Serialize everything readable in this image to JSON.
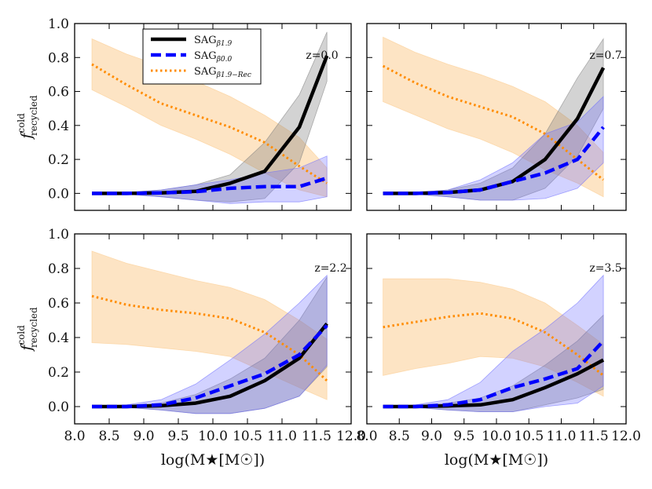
{
  "chart_data": {
    "type": "line",
    "xlabel": "log(M★[M☉])",
    "ylabel": "f^cold_recycled",
    "xlim": [
      8.0,
      12.0
    ],
    "ylim": [
      -0.1,
      1.0
    ],
    "xticks": [
      "8.0",
      "8.5",
      "9.0",
      "9.5",
      "10.0",
      "10.5",
      "11.0",
      "11.5",
      "12.0"
    ],
    "yticks": [
      "0.0",
      "0.2",
      "0.4",
      "0.6",
      "0.8",
      "1.0"
    ],
    "legend": {
      "position": "top-left",
      "entries": [
        {
          "label": "SAG",
          "sub": "β1.9",
          "series": "black"
        },
        {
          "label": "SAG",
          "sub": "β0.0",
          "series": "blue"
        },
        {
          "label": "SAG",
          "sub": "β1.9−Rec",
          "series": "orange"
        }
      ]
    },
    "colors": {
      "black": "#000000",
      "blue": "#0000ff",
      "orange": "#ff8c00",
      "black_band": "#808080",
      "blue_band": "#6b6bff",
      "orange_band": "#fbc98a"
    },
    "x": [
      8.25,
      8.75,
      9.25,
      9.75,
      10.25,
      10.75,
      11.25,
      11.65
    ],
    "panels": [
      {
        "annotation": "z=0.0",
        "series": {
          "black": {
            "values": [
              0.0,
              0.0,
              0.003,
              0.012,
              0.06,
              0.13,
              0.39,
              0.81
            ],
            "lower": [
              0.0,
              -0.005,
              -0.02,
              -0.04,
              -0.05,
              -0.03,
              0.18,
              0.66
            ],
            "upper": [
              0.0,
              0.005,
              0.02,
              0.05,
              0.11,
              0.3,
              0.58,
              0.95
            ]
          },
          "blue": {
            "values": [
              0.0,
              0.0,
              0.003,
              0.01,
              0.03,
              0.04,
              0.04,
              0.09
            ],
            "lower": [
              0.0,
              -0.005,
              -0.02,
              -0.04,
              -0.06,
              -0.05,
              -0.05,
              -0.02
            ],
            "upper": [
              0.0,
              0.005,
              0.02,
              0.05,
              0.08,
              0.12,
              0.15,
              0.22
            ]
          },
          "orange": {
            "values": [
              0.76,
              0.64,
              0.53,
              0.46,
              0.39,
              0.3,
              0.16,
              0.06
            ],
            "lower": [
              0.61,
              0.51,
              0.4,
              0.32,
              0.23,
              0.12,
              0.02,
              -0.02
            ],
            "upper": [
              0.91,
              0.82,
              0.75,
              0.66,
              0.57,
              0.46,
              0.33,
              0.15
            ]
          }
        }
      },
      {
        "annotation": "z=0.7",
        "series": {
          "black": {
            "values": [
              0.0,
              0.0,
              0.005,
              0.02,
              0.07,
              0.2,
              0.44,
              0.74
            ],
            "lower": [
              0.0,
              -0.005,
              -0.02,
              -0.04,
              -0.04,
              0.03,
              0.22,
              0.5
            ],
            "upper": [
              0.0,
              0.005,
              0.02,
              0.06,
              0.15,
              0.35,
              0.68,
              0.91
            ]
          },
          "blue": {
            "values": [
              0.0,
              0.0,
              0.005,
              0.02,
              0.07,
              0.12,
              0.2,
              0.39
            ],
            "lower": [
              0.0,
              -0.005,
              -0.02,
              -0.04,
              -0.04,
              -0.03,
              0.03,
              0.18
            ],
            "upper": [
              0.0,
              0.005,
              0.02,
              0.08,
              0.18,
              0.35,
              0.42,
              0.57
            ]
          },
          "orange": {
            "values": [
              0.75,
              0.65,
              0.57,
              0.51,
              0.45,
              0.35,
              0.2,
              0.08
            ],
            "lower": [
              0.54,
              0.46,
              0.38,
              0.32,
              0.24,
              0.14,
              0.06,
              -0.02
            ],
            "upper": [
              0.92,
              0.83,
              0.76,
              0.7,
              0.63,
              0.54,
              0.4,
              0.24
            ]
          }
        }
      },
      {
        "annotation": "z=2.2",
        "series": {
          "black": {
            "values": [
              0.0,
              0.0,
              0.005,
              0.02,
              0.06,
              0.15,
              0.28,
              0.48
            ],
            "lower": [
              0.0,
              -0.005,
              -0.02,
              -0.04,
              -0.04,
              -0.01,
              0.06,
              0.23
            ],
            "upper": [
              0.0,
              0.005,
              0.02,
              0.07,
              0.16,
              0.28,
              0.5,
              0.75
            ]
          },
          "blue": {
            "values": [
              0.0,
              0.0,
              0.01,
              0.05,
              0.12,
              0.19,
              0.3,
              0.47
            ],
            "lower": [
              0.0,
              -0.005,
              -0.02,
              -0.04,
              -0.04,
              -0.01,
              0.06,
              0.24
            ],
            "upper": [
              0.0,
              0.01,
              0.04,
              0.13,
              0.27,
              0.42,
              0.6,
              0.76
            ]
          },
          "orange": {
            "values": [
              0.64,
              0.59,
              0.56,
              0.54,
              0.51,
              0.43,
              0.3,
              0.15
            ],
            "lower": [
              0.37,
              0.36,
              0.34,
              0.32,
              0.29,
              0.2,
              0.11,
              0.04
            ],
            "upper": [
              0.9,
              0.83,
              0.78,
              0.73,
              0.69,
              0.62,
              0.5,
              0.39
            ]
          }
        }
      },
      {
        "annotation": "z=3.5",
        "series": {
          "black": {
            "values": [
              0.0,
              0.0,
              0.004,
              0.01,
              0.04,
              0.11,
              0.19,
              0.27
            ],
            "lower": [
              0.0,
              -0.005,
              -0.02,
              -0.03,
              -0.03,
              0.01,
              0.05,
              0.1
            ],
            "upper": [
              0.0,
              0.005,
              0.02,
              0.05,
              0.12,
              0.24,
              0.38,
              0.53
            ]
          },
          "blue": {
            "values": [
              0.0,
              0.0,
              0.01,
              0.04,
              0.11,
              0.16,
              0.22,
              0.38
            ],
            "lower": [
              0.0,
              -0.005,
              -0.02,
              -0.03,
              -0.03,
              0.0,
              0.02,
              0.12
            ],
            "upper": [
              0.0,
              0.01,
              0.04,
              0.14,
              0.32,
              0.45,
              0.6,
              0.76
            ]
          },
          "orange": {
            "values": [
              0.46,
              0.49,
              0.52,
              0.54,
              0.51,
              0.43,
              0.3,
              0.18
            ],
            "lower": [
              0.18,
              0.22,
              0.25,
              0.29,
              0.28,
              0.23,
              0.14,
              0.06
            ],
            "upper": [
              0.74,
              0.74,
              0.74,
              0.72,
              0.68,
              0.6,
              0.47,
              0.36
            ]
          }
        }
      }
    ]
  }
}
